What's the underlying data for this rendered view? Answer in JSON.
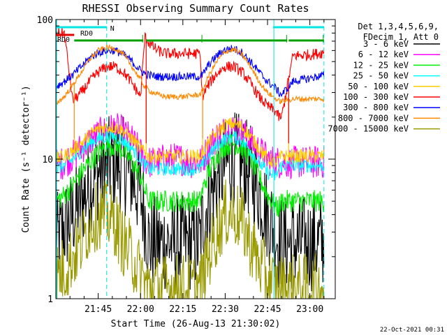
{
  "chart_data": {
    "type": "line",
    "title": "RHESSI Observing Summary Count Rates",
    "xlabel": "Start Time (26-Aug-13 21:30:02)",
    "ylabel": "Count Rate (s⁻¹ detector⁻¹)",
    "x_unit": "minutes after 21:30",
    "xlim": [
      0,
      99
    ],
    "ylim": [
      1,
      100
    ],
    "y_scale": "log",
    "x_ticks": [
      {
        "x": 15,
        "label": "21:45"
      },
      {
        "x": 30,
        "label": "22:00"
      },
      {
        "x": 45,
        "label": "22:15"
      },
      {
        "x": 60,
        "label": "22:30"
      },
      {
        "x": 75,
        "label": "22:45"
      },
      {
        "x": 90,
        "label": "23:00"
      }
    ],
    "y_ticks": [
      {
        "y": 1,
        "label": "1"
      },
      {
        "y": 10,
        "label": "10"
      },
      {
        "y": 100,
        "label": "100"
      }
    ],
    "legend": {
      "position": "right",
      "header": [
        "Det 1,3,4,5,6,9,",
        "FDecim 1, Att 0"
      ]
    },
    "footer": "22-Oct-2021 00:31",
    "flags": [
      {
        "name": "N",
        "color": "#00e5e5",
        "segments": [
          [
            0,
            18
          ],
          [
            77,
            95
          ]
        ]
      },
      {
        "name": "RD0",
        "color": "#00a000",
        "segments": [
          [
            6.5,
            31
          ],
          [
            32,
            52
          ],
          [
            52,
            82
          ],
          [
            82.5,
            95
          ]
        ]
      },
      {
        "name": "RD0",
        "color": "#e00000",
        "segments": [
          [
            0,
            6.5
          ]
        ]
      }
    ],
    "boundaries": [
      {
        "x": 18,
        "color": "#00e5e5"
      },
      {
        "x": 95,
        "color": "#00e5e5"
      }
    ],
    "series": [
      {
        "name": "3 - 6 keV",
        "color": "#000000",
        "x": [
          0,
          3,
          6,
          9,
          12,
          15,
          18,
          21,
          24,
          27,
          30,
          31.5,
          33,
          36,
          39,
          42,
          45,
          48,
          51,
          52,
          54,
          57,
          60,
          63,
          66,
          69,
          72,
          75,
          78,
          79,
          80,
          84,
          90,
          95
        ],
        "y": [
          2.5,
          3.2,
          4,
          5,
          6.5,
          8,
          9,
          9.5,
          9,
          7.5,
          5.5,
          4,
          2.5,
          2.5,
          2.5,
          2.5,
          2.5,
          2.5,
          2.5,
          3.5,
          5,
          7,
          9,
          10,
          9.5,
          8,
          6,
          4,
          3,
          2.5,
          2.5,
          2.5,
          2.5,
          2.5
        ],
        "jitter": 0.35
      },
      {
        "name": "6 - 12 keV",
        "color": "#ff00ff",
        "x": [
          0,
          3,
          6,
          9,
          12,
          15,
          18,
          21,
          24,
          27,
          30,
          31.5,
          33,
          36,
          39,
          42,
          45,
          48,
          51,
          52,
          54,
          57,
          60,
          63,
          66,
          69,
          72,
          75,
          78,
          79,
          80,
          84,
          90,
          95
        ],
        "y": [
          9,
          9.5,
          10.5,
          12,
          13.5,
          15,
          16,
          16.5,
          15.5,
          13.5,
          11,
          10,
          9.5,
          9.5,
          10,
          10,
          10,
          9.5,
          9.5,
          10,
          12,
          14.5,
          16,
          16.5,
          15.5,
          13.5,
          11.5,
          10,
          9.5,
          9.5,
          9.5,
          9.5,
          9.5,
          9.5
        ],
        "jitter": 0.12
      },
      {
        "name": "12 - 25 keV",
        "color": "#00ee00",
        "x": [
          0,
          3,
          6,
          9,
          12,
          15,
          18,
          21,
          24,
          27,
          30,
          31.5,
          33,
          36,
          39,
          42,
          45,
          48,
          51,
          52,
          54,
          57,
          60,
          63,
          66,
          69,
          72,
          75,
          78,
          79,
          80,
          84,
          90,
          95
        ],
        "y": [
          5,
          5.5,
          6.5,
          8,
          9.5,
          11,
          12.5,
          12.5,
          11.5,
          9.5,
          7.5,
          6,
          5,
          5,
          5,
          5,
          5,
          5,
          5,
          6,
          8,
          10.5,
          12.5,
          13,
          12,
          10,
          7.5,
          5.5,
          4.5,
          4.5,
          5,
          5,
          5,
          5
        ],
        "jitter": 0.08
      },
      {
        "name": "25 - 50 keV",
        "color": "#00ffff",
        "x": [
          0,
          3,
          6,
          9,
          12,
          15,
          18,
          21,
          24,
          27,
          30,
          31.5,
          33,
          36,
          39,
          42,
          45,
          48,
          51,
          52,
          54,
          57,
          60,
          63,
          66,
          69,
          72,
          75,
          78,
          79,
          80,
          84,
          90,
          95
        ],
        "y": [
          8.5,
          9,
          10,
          11.5,
          13,
          14,
          14.5,
          14.5,
          13.5,
          12,
          10,
          9,
          8.5,
          8.5,
          8.5,
          8.5,
          8.5,
          8.5,
          8.5,
          9,
          10.5,
          12.5,
          14,
          14.5,
          13.5,
          11.5,
          9.5,
          8,
          7.5,
          8.5,
          9,
          9,
          9,
          9
        ],
        "jitter": 0.05
      },
      {
        "name": "50 - 100 keV",
        "color": "#ffcc00",
        "x": [
          0,
          3,
          6,
          9,
          12,
          15,
          18,
          21,
          24,
          27,
          30,
          31.5,
          33,
          36,
          39,
          42,
          45,
          48,
          51,
          52,
          54,
          57,
          60,
          63,
          66,
          69,
          72,
          75,
          78,
          79,
          80,
          84,
          90,
          95
        ],
        "y": [
          10,
          10.5,
          11.5,
          13,
          15,
          16.5,
          17,
          17,
          16,
          14,
          12,
          11,
          10.5,
          10.5,
          10.5,
          10.5,
          10.5,
          10.5,
          10.5,
          11,
          13,
          15.5,
          17.5,
          18,
          17,
          14.5,
          12,
          10,
          9.5,
          10,
          10.5,
          10.5,
          10.5,
          10.5
        ],
        "jitter": 0.05
      },
      {
        "name": "100 - 300 keV",
        "color": "#ff0000",
        "x": [
          0,
          3,
          6,
          9,
          12,
          15,
          18,
          21,
          24,
          27,
          30,
          31.5,
          33,
          36,
          39,
          42,
          45,
          48,
          51,
          52,
          54,
          57,
          60,
          63,
          66,
          69,
          72,
          75,
          78,
          79,
          80,
          84,
          90,
          95
        ],
        "y": [
          80,
          80,
          26,
          30,
          36,
          42,
          46,
          46,
          42,
          35,
          28,
          75,
          68,
          60,
          57,
          57,
          57,
          57,
          57,
          28,
          34,
          41,
          46,
          46,
          42,
          35,
          28,
          24,
          22,
          20,
          20,
          55,
          56,
          58
        ],
        "jitter": 0.04
      },
      {
        "name": "300 - 800 keV",
        "color": "#0000ff",
        "x": [
          0,
          3,
          6,
          9,
          12,
          15,
          18,
          21,
          24,
          27,
          30,
          31.5,
          33,
          36,
          39,
          42,
          45,
          48,
          51,
          52,
          54,
          57,
          60,
          63,
          66,
          69,
          72,
          75,
          78,
          79,
          80,
          84,
          90,
          95
        ],
        "y": [
          33,
          36,
          40,
          46,
          53,
          58,
          60,
          60,
          56,
          50,
          43,
          41,
          40,
          39,
          39,
          39,
          39,
          39,
          39,
          40,
          47,
          55,
          61,
          62,
          58,
          50,
          42,
          36,
          32,
          30,
          29,
          36,
          38,
          40
        ],
        "jitter": 0.03
      },
      {
        "name": "800 - 7000 keV",
        "color": "#ff8800",
        "x": [
          0,
          3,
          6,
          9,
          12,
          15,
          18,
          21,
          24,
          27,
          30,
          31.5,
          33,
          36,
          39,
          42,
          45,
          48,
          51,
          52,
          54,
          57,
          60,
          63,
          66,
          69,
          72,
          75,
          78,
          79,
          80,
          84,
          90,
          95
        ],
        "y": [
          25,
          28,
          34,
          42,
          52,
          60,
          63,
          62,
          56,
          46,
          37,
          33,
          31,
          29,
          28,
          28,
          28,
          28.5,
          29,
          31,
          39,
          50,
          59,
          61,
          56,
          46,
          36,
          30,
          27,
          26,
          26,
          27,
          27,
          27
        ],
        "jitter": 0.02
      },
      {
        "name": "7000 - 15000 keV",
        "color": "#999900",
        "x": [
          0,
          3,
          6,
          9,
          12,
          15,
          18,
          21,
          24,
          27,
          30,
          31.5,
          33,
          36,
          39,
          42,
          45,
          48,
          51,
          52,
          54,
          57,
          60,
          63,
          66,
          69,
          72,
          75,
          78,
          79,
          80,
          84,
          90,
          95
        ],
        "y": [
          1.5,
          1.6,
          2,
          2.5,
          3.5,
          4,
          4,
          3.5,
          2.5,
          2,
          1.5,
          1.3,
          1.2,
          1.2,
          1.2,
          1.2,
          1.2,
          1.2,
          1.2,
          1.4,
          2,
          3,
          4,
          4.2,
          3.5,
          2.5,
          1.8,
          1.4,
          1.2,
          1.2,
          1.2,
          1.2,
          1.2,
          1.2
        ],
        "jitter": 0.25
      }
    ],
    "dips": [
      {
        "x": 6.5,
        "series": [
          "800 - 7000 keV",
          "50 - 100 keV"
        ],
        "to": 14
      },
      {
        "x": 32,
        "series": [
          "800 - 7000 keV",
          "50 - 100 keV",
          "100 - 300 keV"
        ],
        "to": 13
      },
      {
        "x": 52,
        "series": [
          "800 - 7000 keV",
          "50 - 100 keV"
        ],
        "to": 14
      },
      {
        "x": 82.5,
        "series": [
          "800 - 7000 keV",
          "50 - 100 keV",
          "100 - 300 keV"
        ],
        "to": 13
      }
    ]
  }
}
